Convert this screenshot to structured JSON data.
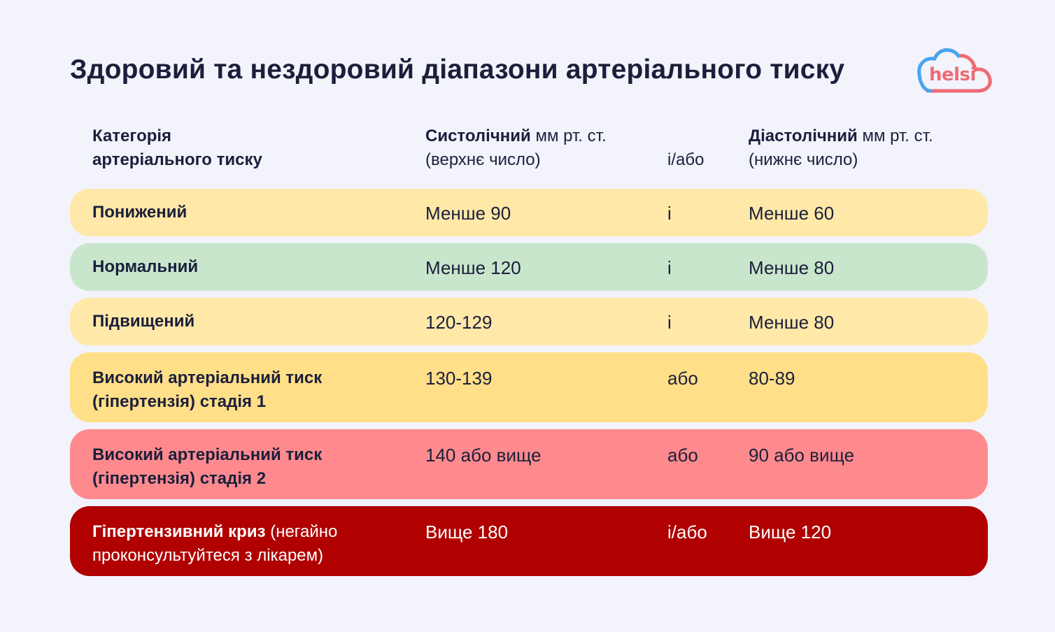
{
  "title": "Здоровий та нездоровий діапазони артеріального тиску",
  "logo": {
    "text": "helsi",
    "icon": "cloud-logo-icon",
    "colors": {
      "cloud_blue": "#4aa3ee",
      "cloud_pink": "#ee6b75"
    }
  },
  "header": {
    "category_line1": "Категорія",
    "category_line2": "артеріального тиску",
    "systolic_bold": "Систолічний",
    "systolic_unit": " мм рт. ст.",
    "systolic_note": "(верхнє число)",
    "connector": "і/або",
    "diastolic_bold": "Діастолічний",
    "diastolic_unit": " мм рт. ст.",
    "diastolic_note": "(нижнє число)"
  },
  "rows": [
    {
      "category": "Понижений",
      "category_extra": "",
      "systolic": "Менше 90",
      "connector": "і",
      "diastolic": "Менше 60",
      "color": "#ffe8a8",
      "text_color": "#1b1f3b"
    },
    {
      "category": "Нормальний",
      "category_extra": "",
      "systolic": "Менше 120",
      "connector": "і",
      "diastolic": "Менше 80",
      "color": "#c8e6cc",
      "text_color": "#1b1f3b"
    },
    {
      "category": "Підвищений",
      "category_extra": "",
      "systolic": "120-129",
      "connector": "і",
      "diastolic": "Менше 80",
      "color": "#ffe8a8",
      "text_color": "#1b1f3b"
    },
    {
      "category": "Високий артеріальний тиск (гіпертензія) стадія 1",
      "category_extra": "",
      "systolic": "130-139",
      "connector": "або",
      "diastolic": "80-89",
      "color": "#ffdf87",
      "text_color": "#1b1f3b"
    },
    {
      "category": "Високий артеріальний тиск (гіпертензія) стадія 2",
      "category_extra": "",
      "systolic": "140 або вище",
      "connector": "або",
      "diastolic": "90 або вище",
      "color": "#ff8a8e",
      "text_color": "#1b1f3b"
    },
    {
      "category": "Гіпертензивний криз",
      "category_extra": " (негайно проконсультуйтеся з лікарем)",
      "systolic": "Вище 180",
      "connector": "і/або",
      "diastolic": "Вище 120",
      "color": "#b00000",
      "text_color": "#ffffff"
    }
  ]
}
